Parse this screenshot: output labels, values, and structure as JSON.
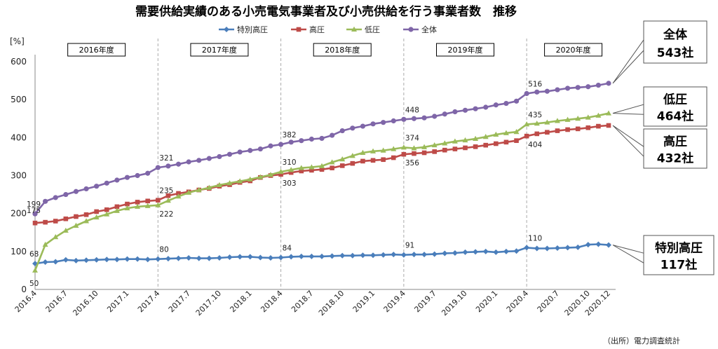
{
  "chart_data": {
    "type": "line",
    "title": "需要供給実績のある小売電気事業者及び小売供給を行う事業者数　推移",
    "ylabel": "[%]",
    "ylim": [
      0,
      600
    ],
    "yticks": [
      0,
      100,
      200,
      300,
      400,
      500,
      600
    ],
    "grid": false,
    "legend_position": "top",
    "x": [
      "2016.4",
      "2016.5",
      "2016.6",
      "2016.7",
      "2016.8",
      "2016.9",
      "2016.10",
      "2016.11",
      "2016.12",
      "2017.1",
      "2017.2",
      "2017.3",
      "2017.4",
      "2017.5",
      "2017.6",
      "2017.7",
      "2017.8",
      "2017.9",
      "2017.10",
      "2017.11",
      "2017.12",
      "2018.1",
      "2018.2",
      "2018.3",
      "2018.4",
      "2018.5",
      "2018.6",
      "2018.7",
      "2018.8",
      "2018.9",
      "2018.10",
      "2018.11",
      "2018.12",
      "2019.1",
      "2019.2",
      "2019.3",
      "2019.4",
      "2019.5",
      "2019.6",
      "2019.7",
      "2019.8",
      "2019.9",
      "2019.10",
      "2019.11",
      "2019.12",
      "2020.1",
      "2020.2",
      "2020.3",
      "2020.4",
      "2020.5",
      "2020.6",
      "2020.7",
      "2020.8",
      "2020.9",
      "2020.10",
      "2020.11",
      "2020.12"
    ],
    "x_tick_labels": [
      "2016.4",
      "2016.7",
      "2016.10",
      "2017.1",
      "2017.4",
      "2017.7",
      "2017.10",
      "2018.1",
      "2018.4",
      "2018.7",
      "2018.10",
      "2019.1",
      "2019.4",
      "2019.7",
      "2019.10",
      "2020.1",
      "2020.4",
      "2020.7",
      "2020.10",
      "2020.12"
    ],
    "fiscal_years": [
      "2016年度",
      "2017年度",
      "2018年度",
      "2019年度",
      "2020年度"
    ],
    "series": [
      {
        "name": "特別高圧",
        "color": "#4a7ebb",
        "marker": "diamond",
        "values": [
          68,
          72,
          73,
          78,
          76,
          77,
          78,
          79,
          79,
          80,
          80,
          79,
          80,
          81,
          82,
          83,
          82,
          82,
          83,
          85,
          86,
          86,
          84,
          83,
          84,
          86,
          87,
          87,
          87,
          88,
          89,
          89,
          90,
          90,
          91,
          92,
          91,
          92,
          92,
          93,
          95,
          96,
          98,
          99,
          100,
          98,
          100,
          101,
          110,
          108,
          108,
          109,
          110,
          111,
          118,
          119,
          117
        ],
        "point_labels": [
          [
            "0",
            "68"
          ],
          [
            "12",
            "80"
          ],
          [
            "24",
            "84"
          ],
          [
            "36",
            "91"
          ],
          [
            "48",
            "110"
          ]
        ]
      },
      {
        "name": "高圧",
        "color": "#be4b48",
        "marker": "square",
        "values": [
          175,
          177,
          180,
          186,
          192,
          197,
          205,
          210,
          218,
          225,
          230,
          233,
          235,
          247,
          253,
          257,
          262,
          266,
          272,
          276,
          282,
          286,
          295,
          300,
          303,
          308,
          312,
          314,
          316,
          320,
          326,
          332,
          338,
          340,
          342,
          347,
          356,
          358,
          360,
          363,
          367,
          370,
          373,
          376,
          380,
          384,
          388,
          392,
          404,
          410,
          414,
          418,
          421,
          423,
          426,
          430,
          432
        ],
        "point_labels": [
          [
            "0",
            "175"
          ],
          [
            "12",
            "235"
          ],
          [
            "24",
            "303"
          ],
          [
            "36",
            "356"
          ],
          [
            "48",
            "404"
          ]
        ]
      },
      {
        "name": "低圧",
        "color": "#9bbb59",
        "marker": "triangle",
        "values": [
          50,
          118,
          138,
          155,
          168,
          180,
          190,
          198,
          207,
          214,
          218,
          220,
          222,
          234,
          245,
          255,
          262,
          268,
          275,
          280,
          285,
          290,
          296,
          302,
          310,
          315,
          320,
          322,
          325,
          335,
          343,
          352,
          360,
          364,
          366,
          370,
          374,
          372,
          375,
          380,
          385,
          390,
          393,
          397,
          402,
          408,
          412,
          415,
          435,
          437,
          440,
          444,
          447,
          450,
          453,
          458,
          464
        ],
        "point_labels": [
          [
            "0",
            "50"
          ],
          [
            "12",
            "222"
          ],
          [
            "24",
            "310"
          ],
          [
            "36",
            "374"
          ],
          [
            "48",
            "435"
          ]
        ]
      },
      {
        "name": "全体",
        "color": "#7f66a8",
        "marker": "circle",
        "values": [
          199,
          232,
          242,
          250,
          258,
          265,
          272,
          280,
          288,
          295,
          300,
          306,
          321,
          325,
          330,
          336,
          340,
          345,
          350,
          356,
          362,
          366,
          370,
          378,
          382,
          388,
          392,
          396,
          398,
          406,
          418,
          425,
          430,
          436,
          440,
          444,
          448,
          450,
          452,
          456,
          462,
          468,
          472,
          476,
          480,
          486,
          490,
          496,
          516,
          520,
          522,
          526,
          530,
          532,
          534,
          538,
          543
        ],
        "point_labels": [
          [
            "0",
            "199"
          ],
          [
            "12",
            "321"
          ],
          [
            "24",
            "382"
          ],
          [
            "36",
            "448"
          ],
          [
            "48",
            "516"
          ]
        ]
      }
    ],
    "callouts": [
      {
        "series": "全体",
        "line1": "全体",
        "line2": "543社"
      },
      {
        "series": "低圧",
        "line1": "低圧",
        "line2": "464社"
      },
      {
        "series": "高圧",
        "line1": "高圧",
        "line2": "432社"
      },
      {
        "series": "特別高圧",
        "line1": "特別高圧",
        "line2": "117社"
      }
    ],
    "source": "（出所）電力調査統計"
  }
}
